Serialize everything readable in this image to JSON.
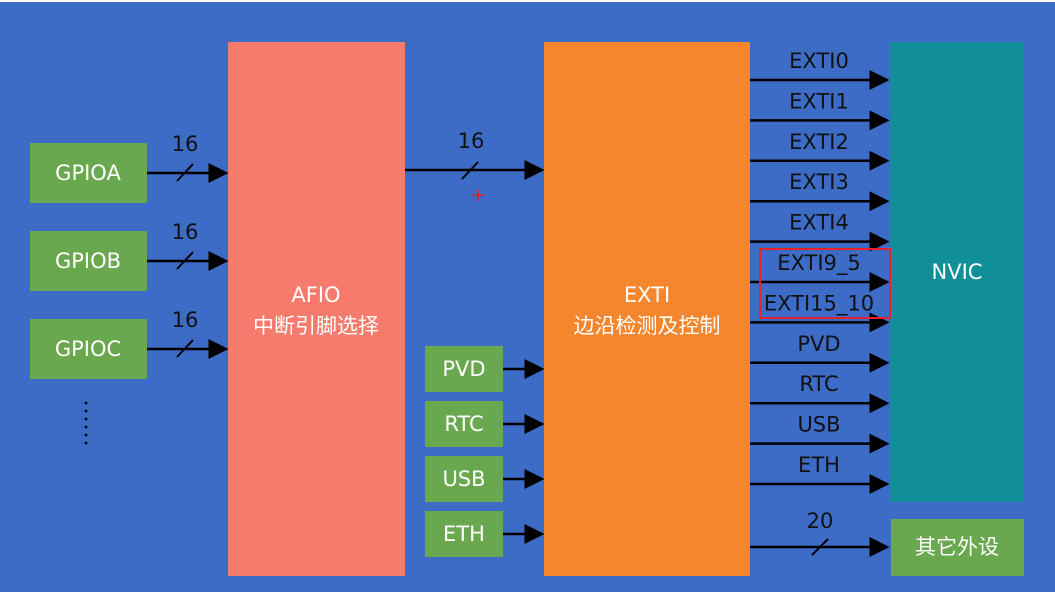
{
  "gpio_ports": [
    {
      "label": "GPIOA",
      "width": "16"
    },
    {
      "label": "GPIOB",
      "width": "16"
    },
    {
      "label": "GPIOC",
      "width": "16"
    }
  ],
  "afio": {
    "title": "AFIO",
    "subtitle": "中断引脚选择"
  },
  "afio_to_exti_width": "16",
  "cursor_mark": "+",
  "exti_inputs": [
    "PVD",
    "RTC",
    "USB",
    "ETH"
  ],
  "exti": {
    "title": "EXTI",
    "subtitle": "边沿检测及控制"
  },
  "exti_outputs": [
    "EXTI0",
    "EXTI1",
    "EXTI2",
    "EXTI3",
    "EXTI4",
    "EXTI9_5",
    "EXTI15_10",
    "PVD",
    "RTC",
    "USB",
    "ETH"
  ],
  "nvic": "NVIC",
  "other_peripherals": {
    "label": "其它外设",
    "width": "20"
  }
}
